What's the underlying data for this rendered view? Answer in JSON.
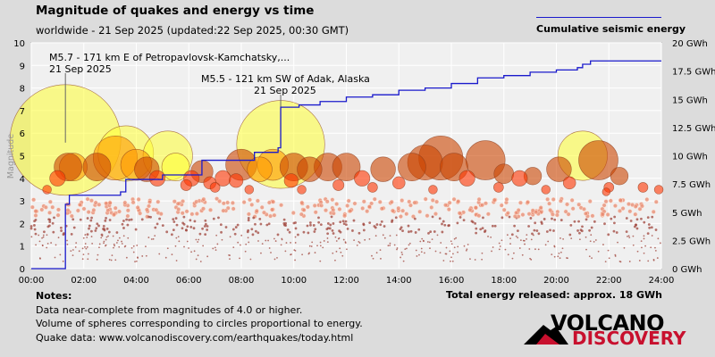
{
  "header": {
    "title": "Magnitude of quakes and energy vs time",
    "subtitle": "worldwide - 21 Sep 2025 (updated:22 Sep 2025, 00:30 GMT)"
  },
  "legend": {
    "label": "Cumulative seismic energy",
    "color": "#1a1acc"
  },
  "notes": {
    "heading": "Notes:",
    "line1": "Data near-complete from magnitudes of 4.0 or higher.",
    "line2": "Volume of spheres corresponding to circles proportional to energy.",
    "line3": "Quake data: www.volcanodiscovery.com/earthquakes/today.html"
  },
  "total_energy": "Total energy released: approx. 18 GWh",
  "logo": {
    "word1": "VOLCANO",
    "word2": "DISCOVERY"
  },
  "chart_data": {
    "type": "scatter",
    "title": "Magnitude of quakes and energy vs time",
    "ylabel": "Magnitude",
    "xlim": [
      0,
      24
    ],
    "ylim": [
      0,
      10
    ],
    "y2lim": [
      0,
      20
    ],
    "x_ticks": [
      "00:00",
      "02:00",
      "04:00",
      "06:00",
      "08:00",
      "10:00",
      "12:00",
      "14:00",
      "16:00",
      "18:00",
      "20:00",
      "22:00",
      "24:00"
    ],
    "x_tick_values": [
      0,
      2,
      4,
      6,
      8,
      10,
      12,
      14,
      16,
      18,
      20,
      22,
      24
    ],
    "y_ticks": [
      "0",
      "1",
      "2",
      "3",
      "4",
      "5",
      "6",
      "7",
      "8",
      "9",
      "10"
    ],
    "y2_ticks": [
      "0 GWh",
      "2.5 GWh",
      "5 GWh",
      "7.5 GWh",
      "10 GWh",
      "12.5 GWh",
      "15 GWh",
      "17.5 GWh",
      "20 GWh"
    ],
    "y2_tick_values": [
      0,
      2.5,
      5,
      7.5,
      10,
      12.5,
      15,
      17.5,
      20
    ],
    "grid": true,
    "annotations": [
      {
        "text": "M5.7 - 171 km E of Petropavlovsk-Kamchatsky,...",
        "date": "21 Sep 2025",
        "x": 1.3,
        "mag": 5.7
      },
      {
        "text": "M5.5 - 121 km SW of Adak, Alaska",
        "date": "21 Sep 2025",
        "x": 9.5,
        "mag": 5.5
      }
    ],
    "cumulative_energy": {
      "name": "Cumulative seismic energy",
      "unit": "GWh",
      "x": [
        0,
        1.3,
        1.3,
        1.45,
        1.45,
        3.4,
        3.6,
        3.6,
        5.0,
        6.5,
        6.5,
        8.5,
        9.4,
        9.5,
        9.5,
        10.2,
        11.0,
        12.0,
        13.0,
        14.0,
        15.0,
        16.0,
        17.0,
        18.0,
        19.0,
        20.0,
        20.8,
        21.0,
        21.0,
        21.3,
        21.3,
        22.0,
        23.0,
        24.0
      ],
      "y": [
        0,
        0.2,
        5.7,
        5.9,
        6.5,
        6.8,
        7.0,
        7.9,
        8.3,
        8.7,
        9.6,
        10.3,
        10.7,
        11.0,
        14.3,
        14.5,
        14.8,
        15.2,
        15.4,
        15.8,
        16.0,
        16.4,
        16.9,
        17.1,
        17.4,
        17.6,
        17.8,
        17.9,
        18.1,
        18.2,
        18.4,
        18.4,
        18.4,
        18.4
      ]
    },
    "quakes": [
      {
        "t": 1.3,
        "mag": 5.7,
        "color": "#ffff33"
      },
      {
        "t": 9.5,
        "mag": 5.5,
        "color": "#ffff33"
      },
      {
        "t": 3.6,
        "mag": 5.1,
        "color": "#ffff33"
      },
      {
        "t": 5.2,
        "mag": 5.0,
        "color": "#ffff33"
      },
      {
        "t": 21.0,
        "mag": 5.0,
        "color": "#ffff33"
      },
      {
        "t": 5.5,
        "mag": 4.5,
        "color": "#ffff33"
      },
      {
        "t": 3.2,
        "mag": 4.9,
        "color": "#ff9900"
      },
      {
        "t": 4.0,
        "mag": 4.6,
        "color": "#ff9900"
      },
      {
        "t": 1.6,
        "mag": 4.5,
        "color": "#ff9900"
      },
      {
        "t": 8.7,
        "mag": 4.4,
        "color": "#ff9900"
      },
      {
        "t": 9.2,
        "mag": 4.6,
        "color": "#ff9900"
      },
      {
        "t": 1.4,
        "mag": 4.5,
        "color": "#cc4400"
      },
      {
        "t": 2.5,
        "mag": 4.5,
        "color": "#cc4400"
      },
      {
        "t": 4.4,
        "mag": 4.4,
        "color": "#cc4400"
      },
      {
        "t": 6.5,
        "mag": 4.3,
        "color": "#cc4400"
      },
      {
        "t": 8.0,
        "mag": 4.6,
        "color": "#cc4400"
      },
      {
        "t": 10.0,
        "mag": 4.5,
        "color": "#cc4400"
      },
      {
        "t": 10.6,
        "mag": 4.4,
        "color": "#cc4400"
      },
      {
        "t": 11.3,
        "mag": 4.5,
        "color": "#cc4400"
      },
      {
        "t": 12.0,
        "mag": 4.5,
        "color": "#cc4400"
      },
      {
        "t": 13.4,
        "mag": 4.4,
        "color": "#cc4400"
      },
      {
        "t": 14.5,
        "mag": 4.5,
        "color": "#cc4400"
      },
      {
        "t": 15.0,
        "mag": 4.7,
        "color": "#cc4400"
      },
      {
        "t": 15.6,
        "mag": 4.9,
        "color": "#cc4400"
      },
      {
        "t": 16.1,
        "mag": 4.5,
        "color": "#cc4400"
      },
      {
        "t": 17.3,
        "mag": 4.8,
        "color": "#cc4400"
      },
      {
        "t": 18.0,
        "mag": 4.2,
        "color": "#cc4400"
      },
      {
        "t": 19.1,
        "mag": 4.1,
        "color": "#cc4400"
      },
      {
        "t": 20.1,
        "mag": 4.4,
        "color": "#cc4400"
      },
      {
        "t": 21.6,
        "mag": 4.8,
        "color": "#cc4400"
      },
      {
        "t": 22.4,
        "mag": 4.1,
        "color": "#cc4400"
      },
      {
        "t": 1.0,
        "mag": 4.0,
        "color": "#ff3300"
      },
      {
        "t": 4.8,
        "mag": 4.0,
        "color": "#ff3300"
      },
      {
        "t": 6.1,
        "mag": 4.0,
        "color": "#ff3300"
      },
      {
        "t": 6.8,
        "mag": 3.8,
        "color": "#ff3300"
      },
      {
        "t": 7.3,
        "mag": 4.0,
        "color": "#ff3300"
      },
      {
        "t": 7.8,
        "mag": 3.9,
        "color": "#ff3300"
      },
      {
        "t": 9.9,
        "mag": 3.9,
        "color": "#ff3300"
      },
      {
        "t": 12.6,
        "mag": 4.0,
        "color": "#ff3300"
      },
      {
        "t": 14.0,
        "mag": 3.8,
        "color": "#ff3300"
      },
      {
        "t": 16.6,
        "mag": 4.0,
        "color": "#ff3300"
      },
      {
        "t": 18.6,
        "mag": 4.0,
        "color": "#ff3300"
      },
      {
        "t": 20.5,
        "mag": 3.8,
        "color": "#ff3300"
      },
      {
        "t": 22.0,
        "mag": 3.6,
        "color": "#ff3300"
      },
      {
        "t": 23.3,
        "mag": 3.6,
        "color": "#ff3300"
      },
      {
        "t": 0.6,
        "mag": 3.5,
        "color": "#ff3300"
      },
      {
        "t": 5.9,
        "mag": 3.7,
        "color": "#ff3300"
      },
      {
        "t": 7.0,
        "mag": 3.6,
        "color": "#ff3300"
      },
      {
        "t": 8.3,
        "mag": 3.5,
        "color": "#ff3300"
      },
      {
        "t": 10.3,
        "mag": 3.5,
        "color": "#ff3300"
      },
      {
        "t": 11.7,
        "mag": 3.7,
        "color": "#ff3300"
      },
      {
        "t": 13.0,
        "mag": 3.6,
        "color": "#ff3300"
      },
      {
        "t": 15.3,
        "mag": 3.5,
        "color": "#ff3300"
      },
      {
        "t": 17.8,
        "mag": 3.6,
        "color": "#ff3300"
      },
      {
        "t": 19.6,
        "mag": 3.5,
        "color": "#ff3300"
      },
      {
        "t": 21.9,
        "mag": 3.4,
        "color": "#ff3300"
      },
      {
        "t": 23.9,
        "mag": 3.5,
        "color": "#ff3300"
      }
    ],
    "small_quakes_note": "many small quakes (M < 3.5) shown as small dots across all hours, mostly between M0.5 and M3"
  }
}
